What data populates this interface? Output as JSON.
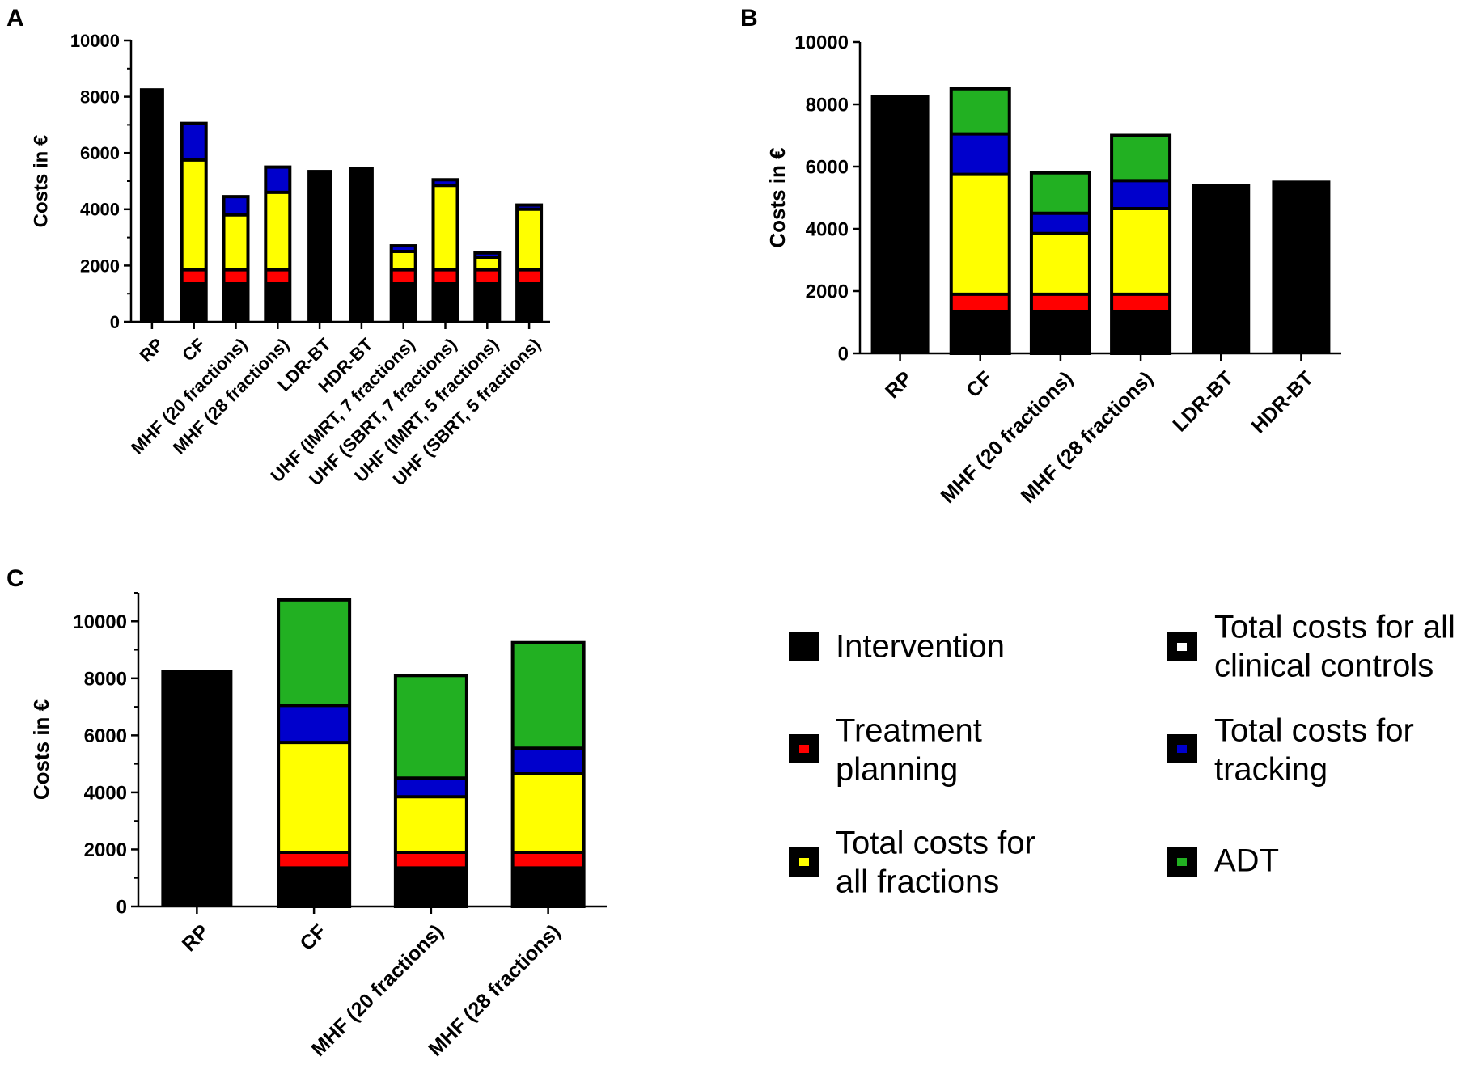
{
  "colors": {
    "Intervention": "#000000",
    "Treatment planning": "#ff0000",
    "Total costs for all fractions": "#ffff00",
    "Total costs for all clinical controls": "#ffffff",
    "Total costs for tracking": "#0000cc",
    "ADT": "#22b022"
  },
  "legend": {
    "items": [
      {
        "key": "Intervention",
        "lines": [
          "Intervention"
        ]
      },
      {
        "key": "Treatment planning",
        "lines": [
          "Treatment",
          "planning"
        ]
      },
      {
        "key": "Total costs for all fractions",
        "lines": [
          "Total costs for",
          "all fractions"
        ]
      },
      {
        "key": "Total costs for all clinical controls",
        "lines": [
          "Total costs for all",
          "clinical controls"
        ]
      },
      {
        "key": "Total costs for tracking",
        "lines": [
          "Total costs for",
          "tracking"
        ]
      },
      {
        "key": "ADT",
        "lines": [
          "ADT"
        ]
      }
    ]
  },
  "chart_data": [
    {
      "panel": "A",
      "type": "bar",
      "stacked": true,
      "ylabel": "Costs in €",
      "ylim": [
        0,
        10000
      ],
      "yticks": [
        0,
        2000,
        4000,
        6000,
        8000,
        10000
      ],
      "categories": [
        "RP",
        "CF",
        "MHF (20 fractions)",
        "MHF (28 fractions)",
        "LDR-BT",
        "HDR-BT",
        "UHF (IMRT, 7 fractions)",
        "UHF (SBRT, 7 fractions)",
        "UHF (IMRT, 5 fractions)",
        "UHF (SBRT, 5 fractions)"
      ],
      "series": [
        {
          "name": "Intervention",
          "values": [
            8300,
            1350,
            1350,
            1350,
            5400,
            5500,
            1350,
            1350,
            1350,
            1350
          ]
        },
        {
          "name": "Treatment planning",
          "values": [
            0,
            500,
            500,
            500,
            0,
            0,
            500,
            500,
            500,
            500
          ]
        },
        {
          "name": "Total costs for all fractions",
          "values": [
            0,
            3900,
            1950,
            2750,
            0,
            0,
            650,
            3000,
            450,
            2150
          ]
        },
        {
          "name": "Total costs for all clinical controls",
          "values": [
            0,
            0,
            0,
            0,
            0,
            0,
            0,
            0,
            0,
            0
          ]
        },
        {
          "name": "Total costs for tracking",
          "values": [
            0,
            1300,
            650,
            900,
            0,
            0,
            200,
            200,
            150,
            150
          ]
        },
        {
          "name": "ADT",
          "values": [
            0,
            0,
            0,
            0,
            0,
            0,
            0,
            0,
            0,
            0
          ]
        }
      ]
    },
    {
      "panel": "B",
      "type": "bar",
      "stacked": true,
      "ylabel": "Costs in €",
      "ylim": [
        0,
        10000
      ],
      "yticks": [
        0,
        2000,
        4000,
        6000,
        8000,
        10000
      ],
      "categories": [
        "RP",
        "CF",
        "MHF (20 fractions)",
        "MHF (28 fractions)",
        "LDR-BT",
        "HDR-BT"
      ],
      "series": [
        {
          "name": "Intervention",
          "values": [
            8300,
            1350,
            1350,
            1350,
            5450,
            5550
          ]
        },
        {
          "name": "Treatment planning",
          "values": [
            0,
            550,
            550,
            550,
            0,
            0
          ]
        },
        {
          "name": "Total costs for all fractions",
          "values": [
            0,
            3850,
            1950,
            2750,
            0,
            0
          ]
        },
        {
          "name": "Total costs for all clinical controls",
          "values": [
            0,
            0,
            0,
            0,
            0,
            0
          ]
        },
        {
          "name": "Total costs for tracking",
          "values": [
            0,
            1300,
            650,
            900,
            0,
            0
          ]
        },
        {
          "name": "ADT",
          "values": [
            0,
            1450,
            1300,
            1450,
            0,
            0
          ]
        }
      ]
    },
    {
      "panel": "C",
      "type": "bar",
      "stacked": true,
      "ylabel": "Costs in €",
      "ylim": [
        0,
        11000
      ],
      "yticks": [
        0,
        2000,
        4000,
        6000,
        8000,
        10000
      ],
      "categories": [
        "RP",
        "CF",
        "MHF (20 fractions)",
        "MHF (28 fractions)"
      ],
      "series": [
        {
          "name": "Intervention",
          "values": [
            8300,
            1350,
            1350,
            1350
          ]
        },
        {
          "name": "Treatment planning",
          "values": [
            0,
            550,
            550,
            550
          ]
        },
        {
          "name": "Total costs for all fractions",
          "values": [
            0,
            3850,
            1950,
            2750
          ]
        },
        {
          "name": "Total costs for all clinical controls",
          "values": [
            0,
            0,
            0,
            0
          ]
        },
        {
          "name": "Total costs for tracking",
          "values": [
            0,
            1300,
            650,
            900
          ]
        },
        {
          "name": "ADT",
          "values": [
            0,
            3700,
            3600,
            3700
          ]
        }
      ]
    }
  ]
}
